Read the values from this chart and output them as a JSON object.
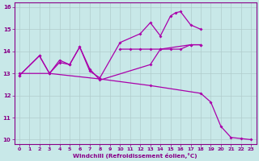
{
  "xlabel": "Windchill (Refroidissement éolien,°C)",
  "background_color": "#c8e8e8",
  "grid_color": "#b0cccc",
  "line_color": "#aa00aa",
  "xlim": [
    -0.5,
    23.5
  ],
  "ylim": [
    9.8,
    16.2
  ],
  "xticks": [
    0,
    1,
    2,
    3,
    4,
    5,
    6,
    7,
    8,
    9,
    10,
    11,
    12,
    13,
    14,
    15,
    16,
    17,
    18,
    19,
    20,
    21,
    22,
    23
  ],
  "yticks": [
    10,
    11,
    12,
    13,
    14,
    15,
    16
  ],
  "series": [
    {
      "x": [
        0,
        2,
        3,
        4,
        5,
        6,
        7,
        8,
        10,
        12,
        13,
        14,
        15,
        15.5,
        16,
        17,
        18
      ],
      "y": [
        12.9,
        13.8,
        13.0,
        13.5,
        13.4,
        14.2,
        13.1,
        12.8,
        14.4,
        14.8,
        15.3,
        14.7,
        15.6,
        15.75,
        15.8,
        15.2,
        15.0
      ]
    },
    {
      "x": [
        0,
        2,
        3,
        4,
        5,
        6,
        7,
        8,
        13,
        14,
        17,
        18
      ],
      "y": [
        12.9,
        13.8,
        13.0,
        13.6,
        13.4,
        14.2,
        13.2,
        12.7,
        13.4,
        14.1,
        14.3,
        14.3
      ]
    },
    {
      "x": [
        10,
        11,
        12,
        13,
        14,
        15,
        16,
        17,
        18
      ],
      "y": [
        14.1,
        14.1,
        14.1,
        14.1,
        14.1,
        14.1,
        14.1,
        14.3,
        14.3
      ]
    },
    {
      "x": [
        0,
        3,
        8,
        13,
        18,
        19,
        20,
        21,
        22,
        23
      ],
      "y": [
        13.0,
        13.0,
        12.75,
        12.45,
        12.1,
        11.7,
        10.6,
        10.1,
        10.05,
        10.0
      ]
    }
  ]
}
